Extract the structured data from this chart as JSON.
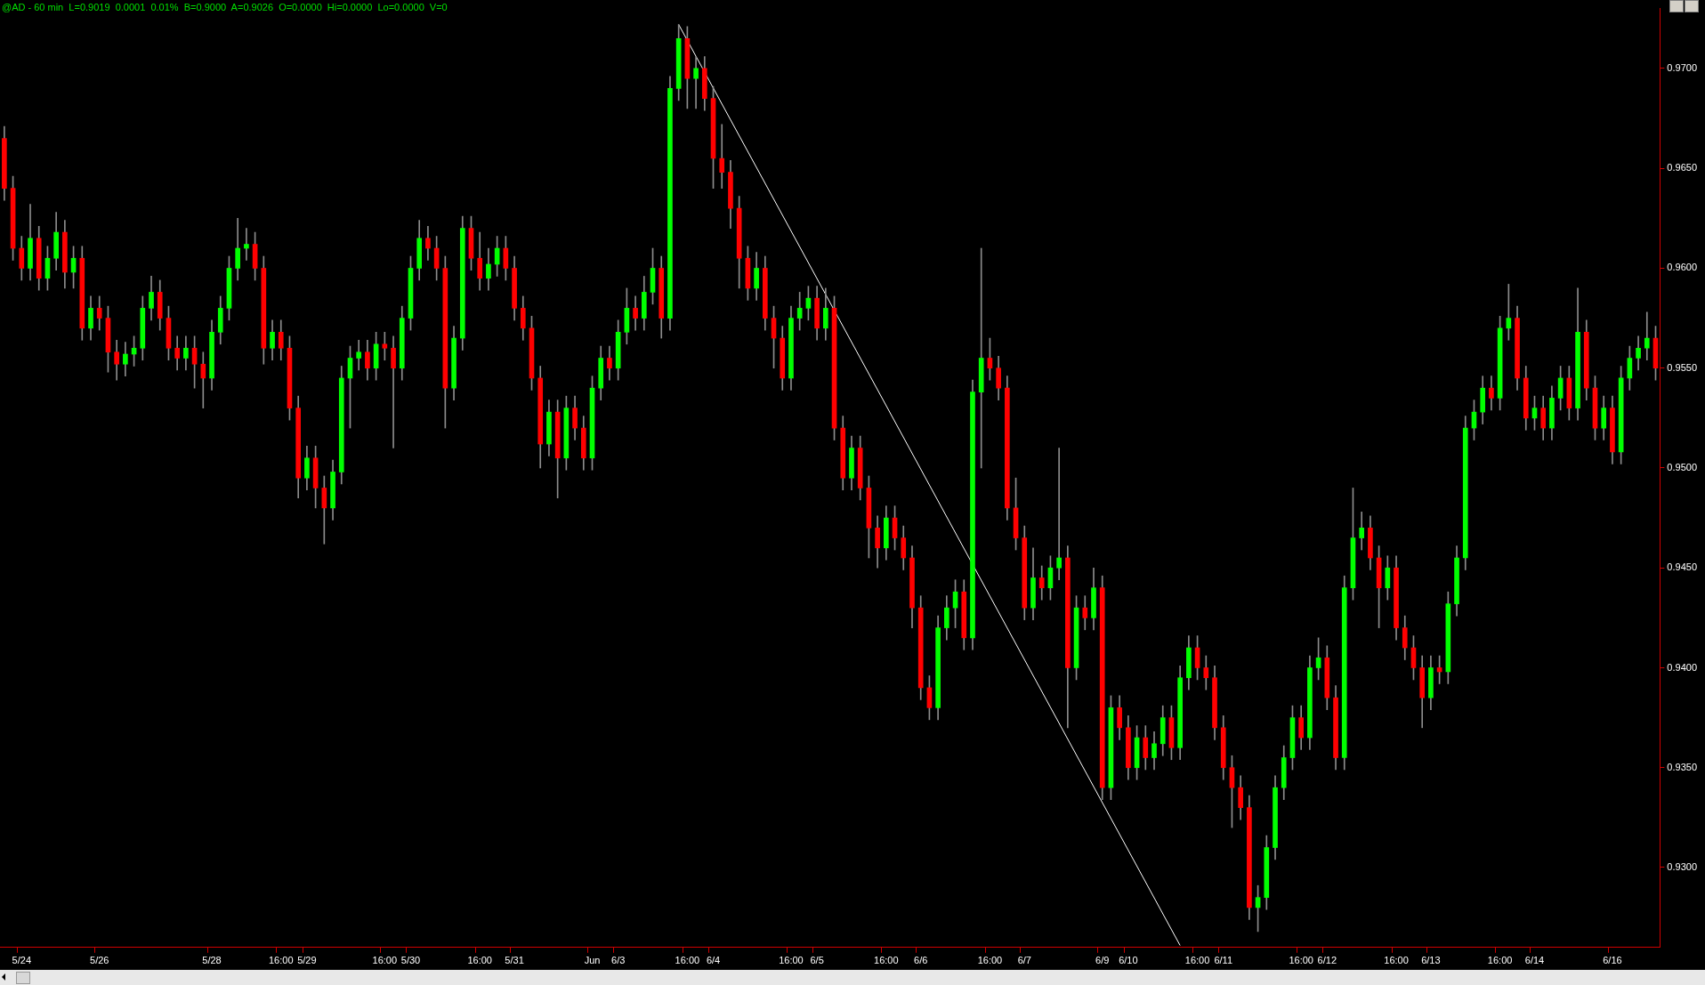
{
  "chart_data": {
    "type": "candlestick",
    "title": "@AD - 60 min  L=0.9019  0.0001  0.01%  B=0.9000  A=0.9026  O=0.0000  Hi=0.0000  Lo=0.0000  V=0",
    "categories": [
      null,
      null,
      "5/24",
      null,
      null,
      null,
      null,
      null,
      null,
      null,
      null,
      "5/26",
      null,
      null,
      null,
      null,
      null,
      null,
      null,
      null,
      null,
      null,
      null,
      null,
      "5/28",
      null,
      null,
      null,
      null,
      null,
      null,
      null,
      "16:00",
      null,
      null,
      "5/29",
      null,
      null,
      null,
      null,
      null,
      null,
      null,
      null,
      "16:00",
      null,
      null,
      "5/30",
      null,
      null,
      null,
      null,
      null,
      null,
      null,
      "16:00",
      null,
      null,
      null,
      "5/31",
      null,
      null,
      null,
      null,
      null,
      null,
      null,
      null,
      "Jun",
      null,
      null,
      "6/3",
      null,
      null,
      null,
      null,
      null,
      null,
      null,
      "16:00",
      null,
      null,
      "6/4",
      null,
      null,
      null,
      null,
      null,
      null,
      null,
      null,
      "16:00",
      null,
      null,
      "6/5",
      null,
      null,
      null,
      null,
      null,
      null,
      null,
      "16:00",
      null,
      null,
      null,
      "6/6",
      null,
      null,
      null,
      null,
      null,
      null,
      null,
      "16:00",
      null,
      null,
      null,
      "6/7",
      null,
      null,
      null,
      null,
      null,
      null,
      null,
      null,
      "6/9",
      null,
      null,
      "6/10",
      null,
      null,
      null,
      null,
      null,
      null,
      null,
      "16:00",
      null,
      null,
      "6/11",
      null,
      null,
      null,
      null,
      null,
      null,
      null,
      null,
      "16:00",
      null,
      null,
      "6/12",
      null,
      null,
      null,
      null,
      null,
      null,
      null,
      "16:00",
      null,
      null,
      null,
      "6/13",
      null,
      null,
      null,
      null,
      null,
      null,
      null,
      "16:00",
      null,
      null,
      null,
      "6/14",
      null,
      null,
      null,
      null,
      null,
      null,
      null,
      null,
      "6/16",
      null,
      null,
      null,
      null,
      null
    ],
    "ohlc": [
      [
        0.9665,
        0.9671,
        0.9634,
        0.964
      ],
      [
        0.964,
        0.9646,
        0.9604,
        0.961
      ],
      [
        0.961,
        0.9616,
        0.9594,
        0.96
      ],
      [
        0.96,
        0.9632,
        0.9594,
        0.9615
      ],
      [
        0.9615,
        0.9621,
        0.9589,
        0.9595
      ],
      [
        0.9595,
        0.9611,
        0.9589,
        0.9605
      ],
      [
        0.9605,
        0.9628,
        0.9599,
        0.9618
      ],
      [
        0.9618,
        0.9624,
        0.959,
        0.9598
      ],
      [
        0.9598,
        0.9611,
        0.959,
        0.9605
      ],
      [
        0.9605,
        0.9611,
        0.9564,
        0.957
      ],
      [
        0.957,
        0.9586,
        0.9564,
        0.958
      ],
      [
        0.958,
        0.9586,
        0.9569,
        0.9575
      ],
      [
        0.9575,
        0.9581,
        0.9548,
        0.9558
      ],
      [
        0.9558,
        0.9564,
        0.9544,
        0.9552
      ],
      [
        0.9552,
        0.9563,
        0.9546,
        0.9557
      ],
      [
        0.9557,
        0.9566,
        0.9551,
        0.956
      ],
      [
        0.956,
        0.9586,
        0.9554,
        0.958
      ],
      [
        0.958,
        0.9596,
        0.9574,
        0.9588
      ],
      [
        0.9588,
        0.9594,
        0.9569,
        0.9575
      ],
      [
        0.9575,
        0.9581,
        0.9554,
        0.956
      ],
      [
        0.956,
        0.9566,
        0.9549,
        0.9555
      ],
      [
        0.9555,
        0.9566,
        0.9549,
        0.956
      ],
      [
        0.956,
        0.9566,
        0.954,
        0.9552
      ],
      [
        0.9552,
        0.9558,
        0.953,
        0.9545
      ],
      [
        0.9545,
        0.9574,
        0.9539,
        0.9568
      ],
      [
        0.9568,
        0.9586,
        0.9562,
        0.958
      ],
      [
        0.958,
        0.9606,
        0.9574,
        0.96
      ],
      [
        0.96,
        0.9625,
        0.9594,
        0.961
      ],
      [
        0.961,
        0.962,
        0.9604,
        0.9612
      ],
      [
        0.9612,
        0.9618,
        0.9594,
        0.96
      ],
      [
        0.96,
        0.9606,
        0.9552,
        0.956
      ],
      [
        0.956,
        0.9574,
        0.9554,
        0.9568
      ],
      [
        0.9568,
        0.9574,
        0.9554,
        0.956
      ],
      [
        0.956,
        0.9566,
        0.9524,
        0.953
      ],
      [
        0.953,
        0.9536,
        0.9485,
        0.9495
      ],
      [
        0.9495,
        0.9511,
        0.9489,
        0.9505
      ],
      [
        0.9505,
        0.9511,
        0.948,
        0.949
      ],
      [
        0.949,
        0.9496,
        0.9462,
        0.948
      ],
      [
        0.948,
        0.9504,
        0.9474,
        0.9498
      ],
      [
        0.9498,
        0.9551,
        0.9492,
        0.9545
      ],
      [
        0.9545,
        0.9561,
        0.952,
        0.9555
      ],
      [
        0.9555,
        0.9564,
        0.9549,
        0.9558
      ],
      [
        0.9558,
        0.9564,
        0.9544,
        0.955
      ],
      [
        0.955,
        0.9568,
        0.9544,
        0.9562
      ],
      [
        0.9562,
        0.9568,
        0.9554,
        0.956
      ],
      [
        0.956,
        0.9566,
        0.951,
        0.955
      ],
      [
        0.955,
        0.9581,
        0.9544,
        0.9575
      ],
      [
        0.9575,
        0.9606,
        0.9569,
        0.96
      ],
      [
        0.96,
        0.9624,
        0.9594,
        0.9615
      ],
      [
        0.9615,
        0.9621,
        0.9604,
        0.961
      ],
      [
        0.961,
        0.9616,
        0.9594,
        0.96
      ],
      [
        0.96,
        0.9606,
        0.952,
        0.954
      ],
      [
        0.954,
        0.9571,
        0.9534,
        0.9565
      ],
      [
        0.9565,
        0.9626,
        0.9559,
        0.962
      ],
      [
        0.962,
        0.9626,
        0.9599,
        0.9605
      ],
      [
        0.9605,
        0.9618,
        0.9589,
        0.9595
      ],
      [
        0.9595,
        0.961,
        0.9589,
        0.9602
      ],
      [
        0.9602,
        0.9616,
        0.9596,
        0.961
      ],
      [
        0.961,
        0.9616,
        0.9594,
        0.96
      ],
      [
        0.96,
        0.9606,
        0.9574,
        0.958
      ],
      [
        0.958,
        0.9586,
        0.9564,
        0.957
      ],
      [
        0.957,
        0.9576,
        0.9539,
        0.9545
      ],
      [
        0.9545,
        0.9551,
        0.95,
        0.9512
      ],
      [
        0.9512,
        0.9534,
        0.9506,
        0.9528
      ],
      [
        0.9528,
        0.9534,
        0.9485,
        0.9505
      ],
      [
        0.9505,
        0.9536,
        0.9499,
        0.953
      ],
      [
        0.953,
        0.9536,
        0.9514,
        0.952
      ],
      [
        0.952,
        0.9526,
        0.9499,
        0.9505
      ],
      [
        0.9505,
        0.9546,
        0.9499,
        0.954
      ],
      [
        0.954,
        0.9561,
        0.9534,
        0.9555
      ],
      [
        0.9555,
        0.9561,
        0.9544,
        0.955
      ],
      [
        0.955,
        0.9574,
        0.9544,
        0.9568
      ],
      [
        0.9568,
        0.959,
        0.9562,
        0.958
      ],
      [
        0.958,
        0.9586,
        0.9569,
        0.9575
      ],
      [
        0.9575,
        0.9596,
        0.9569,
        0.9588
      ],
      [
        0.9588,
        0.961,
        0.9582,
        0.96
      ],
      [
        0.96,
        0.9606,
        0.9565,
        0.9575
      ],
      [
        0.9575,
        0.9696,
        0.9569,
        0.969
      ],
      [
        0.969,
        0.9722,
        0.9684,
        0.9715
      ],
      [
        0.9715,
        0.9721,
        0.968,
        0.9695
      ],
      [
        0.9695,
        0.9706,
        0.968,
        0.97
      ],
      [
        0.97,
        0.9706,
        0.9679,
        0.9685
      ],
      [
        0.9685,
        0.9691,
        0.964,
        0.9655
      ],
      [
        0.9655,
        0.9672,
        0.964,
        0.9648
      ],
      [
        0.9648,
        0.9654,
        0.962,
        0.963
      ],
      [
        0.963,
        0.9636,
        0.959,
        0.9605
      ],
      [
        0.9605,
        0.9611,
        0.9584,
        0.959
      ],
      [
        0.959,
        0.9608,
        0.9584,
        0.96
      ],
      [
        0.96,
        0.9606,
        0.9569,
        0.9575
      ],
      [
        0.9575,
        0.9581,
        0.955,
        0.9565
      ],
      [
        0.9565,
        0.9571,
        0.9539,
        0.9545
      ],
      [
        0.9545,
        0.9581,
        0.9539,
        0.9575
      ],
      [
        0.9575,
        0.9588,
        0.9569,
        0.958
      ],
      [
        0.958,
        0.9591,
        0.9574,
        0.9585
      ],
      [
        0.9585,
        0.9591,
        0.9564,
        0.957
      ],
      [
        0.957,
        0.959,
        0.9564,
        0.958
      ],
      [
        0.958,
        0.9586,
        0.9514,
        0.952
      ],
      [
        0.952,
        0.9526,
        0.9489,
        0.9495
      ],
      [
        0.9495,
        0.9516,
        0.9489,
        0.951
      ],
      [
        0.951,
        0.9516,
        0.9484,
        0.949
      ],
      [
        0.949,
        0.9496,
        0.9455,
        0.947
      ],
      [
        0.947,
        0.9476,
        0.945,
        0.946
      ],
      [
        0.946,
        0.9481,
        0.9454,
        0.9475
      ],
      [
        0.9475,
        0.9481,
        0.9459,
        0.9465
      ],
      [
        0.9465,
        0.9471,
        0.9449,
        0.9455
      ],
      [
        0.9455,
        0.9461,
        0.942,
        0.943
      ],
      [
        0.943,
        0.9436,
        0.9384,
        0.939
      ],
      [
        0.939,
        0.9396,
        0.9374,
        0.938
      ],
      [
        0.938,
        0.9426,
        0.9374,
        0.942
      ],
      [
        0.942,
        0.9436,
        0.9414,
        0.943
      ],
      [
        0.943,
        0.9444,
        0.942,
        0.9438
      ],
      [
        0.9438,
        0.9444,
        0.9409,
        0.9415
      ],
      [
        0.9415,
        0.9544,
        0.9409,
        0.9538
      ],
      [
        0.9538,
        0.961,
        0.95,
        0.9555
      ],
      [
        0.9555,
        0.9565,
        0.9544,
        0.955
      ],
      [
        0.955,
        0.9556,
        0.9534,
        0.954
      ],
      [
        0.954,
        0.9546,
        0.9474,
        0.948
      ],
      [
        0.948,
        0.9495,
        0.9459,
        0.9465
      ],
      [
        0.9465,
        0.9471,
        0.9424,
        0.943
      ],
      [
        0.943,
        0.946,
        0.9424,
        0.9445
      ],
      [
        0.9445,
        0.9451,
        0.9434,
        0.944
      ],
      [
        0.944,
        0.9456,
        0.9434,
        0.945
      ],
      [
        0.945,
        0.951,
        0.9444,
        0.9455
      ],
      [
        0.9455,
        0.9461,
        0.937,
        0.94
      ],
      [
        0.94,
        0.9436,
        0.9394,
        0.943
      ],
      [
        0.943,
        0.9436,
        0.9419,
        0.9425
      ],
      [
        0.9425,
        0.945,
        0.9419,
        0.944
      ],
      [
        0.944,
        0.9446,
        0.9334,
        0.934
      ],
      [
        0.934,
        0.9386,
        0.9334,
        0.938
      ],
      [
        0.938,
        0.9386,
        0.9364,
        0.937
      ],
      [
        0.937,
        0.9376,
        0.9344,
        0.935
      ],
      [
        0.935,
        0.9371,
        0.9344,
        0.9365
      ],
      [
        0.9365,
        0.9371,
        0.9349,
        0.9355
      ],
      [
        0.9355,
        0.9368,
        0.9349,
        0.9362
      ],
      [
        0.9362,
        0.9381,
        0.9356,
        0.9375
      ],
      [
        0.9375,
        0.9381,
        0.9354,
        0.936
      ],
      [
        0.936,
        0.9401,
        0.9354,
        0.9395
      ],
      [
        0.9395,
        0.9416,
        0.9389,
        0.941
      ],
      [
        0.941,
        0.9416,
        0.9394,
        0.94
      ],
      [
        0.94,
        0.9406,
        0.9389,
        0.9395
      ],
      [
        0.9395,
        0.9401,
        0.9364,
        0.937
      ],
      [
        0.937,
        0.9376,
        0.9344,
        0.935
      ],
      [
        0.935,
        0.9356,
        0.932,
        0.934
      ],
      [
        0.934,
        0.9346,
        0.9324,
        0.933
      ],
      [
        0.933,
        0.9336,
        0.9274,
        0.928
      ],
      [
        0.928,
        0.9291,
        0.9268,
        0.9285
      ],
      [
        0.9285,
        0.9316,
        0.9279,
        0.931
      ],
      [
        0.931,
        0.9346,
        0.9304,
        0.934
      ],
      [
        0.934,
        0.9361,
        0.9334,
        0.9355
      ],
      [
        0.9355,
        0.9381,
        0.9349,
        0.9375
      ],
      [
        0.9375,
        0.9381,
        0.9359,
        0.9365
      ],
      [
        0.9365,
        0.9406,
        0.9359,
        0.94
      ],
      [
        0.94,
        0.9415,
        0.9394,
        0.9405
      ],
      [
        0.9405,
        0.9411,
        0.9379,
        0.9385
      ],
      [
        0.9385,
        0.9391,
        0.9349,
        0.9355
      ],
      [
        0.9355,
        0.9446,
        0.9349,
        0.944
      ],
      [
        0.944,
        0.949,
        0.9434,
        0.9465
      ],
      [
        0.9465,
        0.9478,
        0.9459,
        0.947
      ],
      [
        0.947,
        0.9476,
        0.9449,
        0.9455
      ],
      [
        0.9455,
        0.9461,
        0.942,
        0.944
      ],
      [
        0.944,
        0.9456,
        0.9434,
        0.945
      ],
      [
        0.945,
        0.9456,
        0.9414,
        0.942
      ],
      [
        0.942,
        0.9426,
        0.9404,
        0.941
      ],
      [
        0.941,
        0.9416,
        0.9394,
        0.94
      ],
      [
        0.94,
        0.9406,
        0.937,
        0.9385
      ],
      [
        0.9385,
        0.9406,
        0.9379,
        0.94
      ],
      [
        0.94,
        0.9406,
        0.9392,
        0.9398
      ],
      [
        0.9398,
        0.9438,
        0.9392,
        0.9432
      ],
      [
        0.9432,
        0.9461,
        0.9426,
        0.9455
      ],
      [
        0.9455,
        0.9526,
        0.9449,
        0.952
      ],
      [
        0.952,
        0.9534,
        0.9514,
        0.9528
      ],
      [
        0.9528,
        0.9546,
        0.9522,
        0.954
      ],
      [
        0.954,
        0.9546,
        0.9529,
        0.9535
      ],
      [
        0.9535,
        0.9576,
        0.9529,
        0.957
      ],
      [
        0.957,
        0.9592,
        0.9564,
        0.9575
      ],
      [
        0.9575,
        0.9581,
        0.9539,
        0.9545
      ],
      [
        0.9545,
        0.9551,
        0.9519,
        0.9525
      ],
      [
        0.9525,
        0.9536,
        0.9519,
        0.953
      ],
      [
        0.953,
        0.9536,
        0.9514,
        0.952
      ],
      [
        0.952,
        0.9541,
        0.9514,
        0.9535
      ],
      [
        0.9535,
        0.9551,
        0.9529,
        0.9545
      ],
      [
        0.9545,
        0.9551,
        0.9524,
        0.953
      ],
      [
        0.953,
        0.959,
        0.9524,
        0.9568
      ],
      [
        0.9568,
        0.9574,
        0.9534,
        0.954
      ],
      [
        0.954,
        0.9546,
        0.9514,
        0.952
      ],
      [
        0.952,
        0.9536,
        0.9514,
        0.953
      ],
      [
        0.953,
        0.9536,
        0.9502,
        0.9508
      ],
      [
        0.9508,
        0.9551,
        0.9502,
        0.9545
      ],
      [
        0.9545,
        0.9561,
        0.9539,
        0.9555
      ],
      [
        0.9555,
        0.9566,
        0.9549,
        0.956
      ],
      [
        0.956,
        0.9578,
        0.9554,
        0.9565
      ],
      [
        0.9565,
        0.9571,
        0.9544,
        0.955
      ]
    ],
    "series": [
      {
        "type": "line",
        "color": "#ffffff",
        "values": [
          null,
          null,
          null,
          null,
          null,
          null,
          null,
          null,
          null,
          null,
          null,
          null,
          null,
          null,
          null,
          null,
          null,
          null,
          null,
          null,
          null,
          null,
          null,
          null,
          null,
          null,
          null,
          null,
          null,
          null,
          null,
          null,
          null,
          null,
          null,
          null,
          null,
          null,
          null,
          null,
          null,
          null,
          null,
          null,
          null,
          null,
          null,
          null,
          null,
          null,
          null,
          null,
          null,
          null,
          null,
          null,
          null,
          null,
          null,
          null,
          null,
          null,
          null,
          null,
          null,
          null,
          null,
          null,
          null,
          null,
          null,
          null,
          null,
          null,
          null,
          null,
          null,
          null,
          0.9722,
          null,
          null,
          null,
          null,
          null,
          null,
          null,
          null,
          null,
          null,
          null,
          null,
          null,
          null,
          null,
          null,
          null,
          null,
          null,
          null,
          null,
          null,
          null,
          null,
          null,
          null,
          null,
          null,
          null,
          null,
          null,
          null,
          null,
          null,
          null,
          null,
          null,
          null,
          null,
          null,
          null,
          null,
          null,
          null,
          null,
          null,
          null,
          null,
          null,
          null,
          null,
          null,
          null,
          null,
          null,
          null,
          null,
          0.9261,
          null,
          null,
          null,
          null,
          null,
          null,
          null,
          null,
          null,
          null,
          null,
          null,
          null,
          null,
          null,
          null,
          null,
          null,
          null,
          null,
          null,
          null,
          null,
          null,
          null,
          null,
          null,
          null,
          null,
          null,
          null,
          null,
          null,
          null,
          null,
          null,
          null,
          null,
          null,
          null,
          null,
          null,
          null,
          null,
          null,
          null,
          null,
          null,
          null,
          null,
          null,
          null,
          null,
          null,
          null
        ]
      }
    ],
    "ylim": [
      0.926,
      0.973
    ],
    "yticks": [
      {
        "value": 0.93,
        "label": "0.9300"
      },
      {
        "value": 0.935,
        "label": "0.9350"
      },
      {
        "value": 0.94,
        "label": "0.9400"
      },
      {
        "value": 0.945,
        "label": "0.9450"
      },
      {
        "value": 0.95,
        "label": "0.9500"
      },
      {
        "value": 0.955,
        "label": "0.9550"
      },
      {
        "value": 0.96,
        "label": "0.9600"
      },
      {
        "value": 0.965,
        "label": "0.9650"
      },
      {
        "value": 0.97,
        "label": "0.9700"
      }
    ]
  }
}
